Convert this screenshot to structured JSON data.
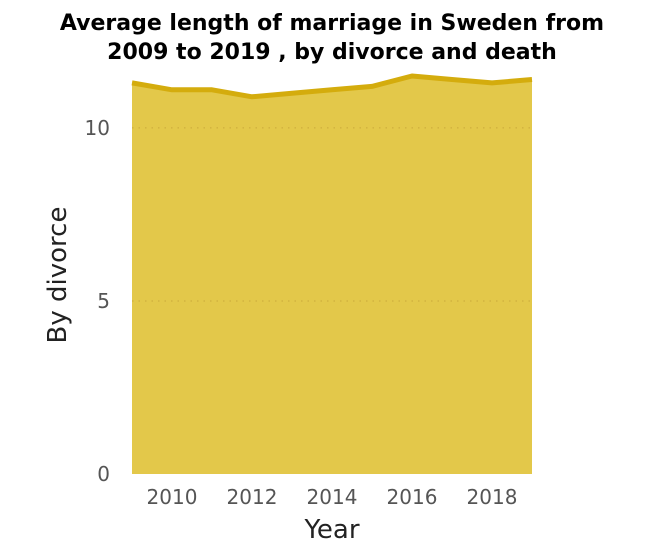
{
  "chart_data": {
    "type": "area",
    "title_lines": [
      "Average length of marriage in Sweden from",
      "2009 to 2019 , by divorce and death"
    ],
    "xlabel": "Year",
    "ylabel": "By divorce",
    "x": [
      2009,
      2010,
      2011,
      2012,
      2013,
      2014,
      2015,
      2016,
      2017,
      2018,
      2019
    ],
    "series": [
      {
        "values": [
          11.3,
          11.1,
          11.1,
          10.9,
          11.0,
          11.1,
          11.2,
          11.5,
          11.4,
          11.3,
          11.4
        ]
      }
    ],
    "xlim": [
      2009,
      2019
    ],
    "ylim": [
      0,
      11.5
    ],
    "xticks": [
      "2010",
      "2012",
      "2014",
      "2016",
      "2018"
    ],
    "yticks": [
      "0",
      "5",
      "10"
    ],
    "grid": "horizontal-dotted",
    "colors": {
      "fill": "#e3c84a",
      "line": "#d4ac0d"
    }
  }
}
